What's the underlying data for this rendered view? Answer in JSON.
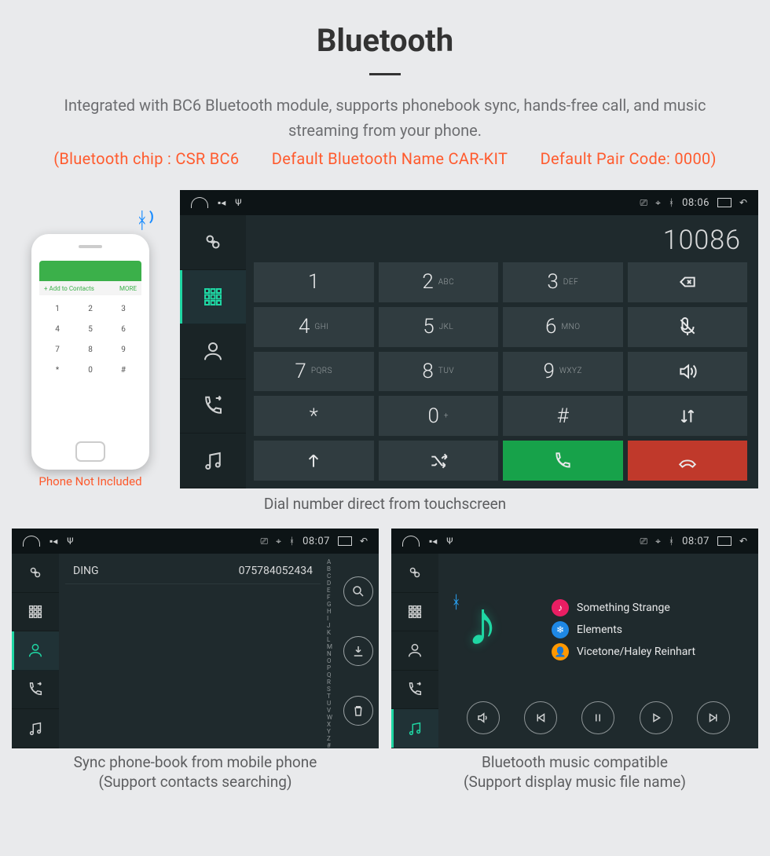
{
  "title": "Bluetooth",
  "description": "Integrated with BC6 Bluetooth module, supports phonebook sync, hands-free call, and music streaming from your phone.",
  "spec_line": "(Bluetooth chip : CSR BC6  Default Bluetooth Name CAR-KIT  Default Pair Code: 0000)",
  "phone": {
    "add_contacts": "+  Add to Contacts",
    "more": "MORE",
    "caption": "Phone Not Included",
    "keys": [
      "1",
      "2",
      "3",
      "4",
      "5",
      "6",
      "7",
      "8",
      "9",
      "*",
      "0",
      "#"
    ]
  },
  "colors": {
    "accent": "#1fd6a3",
    "call": "#17a24a",
    "hang": "#c0392b",
    "orange": "#ff5b2e",
    "key_bg": "#303c40",
    "screen_bg": "#1f2a2d"
  },
  "dialer": {
    "time": "08:06",
    "number": "10086",
    "keys": [
      {
        "d": "1",
        "s": ""
      },
      {
        "d": "2",
        "s": "ABC"
      },
      {
        "d": "3",
        "s": "DEF"
      },
      {
        "d": "4",
        "s": "GHI"
      },
      {
        "d": "5",
        "s": "JKL"
      },
      {
        "d": "6",
        "s": "MNO"
      },
      {
        "d": "7",
        "s": "PQRS"
      },
      {
        "d": "8",
        "s": "TUV"
      },
      {
        "d": "9",
        "s": "WXYZ"
      },
      {
        "d": "*",
        "s": ""
      },
      {
        "d": "0",
        "s": "+"
      },
      {
        "d": "#",
        "s": ""
      }
    ],
    "caption": "Dial number direct from touchscreen"
  },
  "contacts": {
    "time": "08:07",
    "row": {
      "name": "DING",
      "number": "075784052434"
    },
    "caption1": "Sync phone-book from mobile phone",
    "caption2": "(Support contacts searching)"
  },
  "music": {
    "time": "08:07",
    "tracks": [
      {
        "label": "Something Strange",
        "color": "#e91e63",
        "glyph": "♪"
      },
      {
        "label": "Elements",
        "color": "#1e88e5",
        "glyph": "❄"
      },
      {
        "label": "Vicetone/Haley Reinhart",
        "color": "#ff9800",
        "glyph": "👤"
      }
    ],
    "caption1": "Bluetooth music compatible",
    "caption2": "(Support display music file name)"
  }
}
